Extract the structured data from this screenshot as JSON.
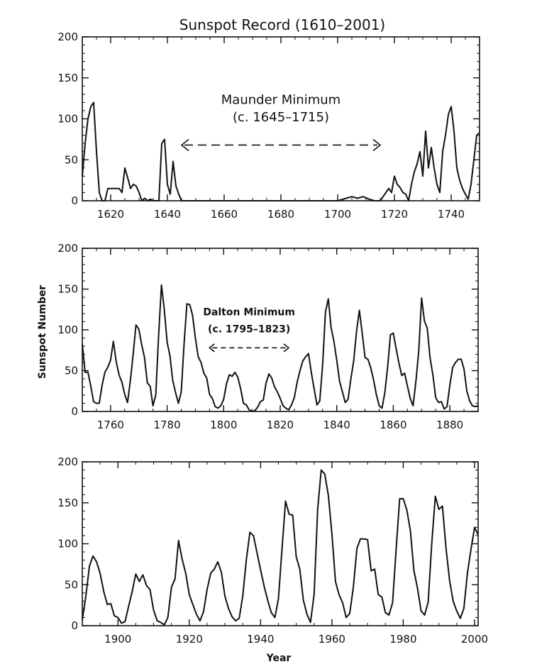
{
  "title": "Sunspot Record (1610–2001)",
  "ylabel": "Sunspot Number",
  "xlabel": "Year",
  "chart_data": [
    {
      "type": "line",
      "xlim": [
        1610,
        1750
      ],
      "ylim": [
        0,
        200
      ],
      "xticks": [
        1620,
        1640,
        1660,
        1680,
        1700,
        1720,
        1740
      ],
      "yticks": [
        0,
        50,
        100,
        150,
        200
      ],
      "annotation": {
        "line1": "Maunder Minimum",
        "line2": "(c. 1645–1715)",
        "x_from": 1645,
        "x_to": 1715,
        "y1": 118,
        "y2": 97,
        "y_arrow": 68
      },
      "series": [
        {
          "x": [
            1610,
            1611,
            1612,
            1613,
            1614,
            1615,
            1616,
            1617,
            1618,
            1619,
            1620,
            1621,
            1622,
            1623,
            1624,
            1625,
            1626,
            1627,
            1628,
            1629,
            1630,
            1631,
            1632,
            1633,
            1634,
            1635,
            1636,
            1637,
            1638,
            1639,
            1640,
            1641,
            1642,
            1643,
            1644,
            1645,
            1650,
            1660,
            1670,
            1680,
            1690,
            1700,
            1703,
            1705,
            1707,
            1709,
            1711,
            1713,
            1715,
            1716,
            1717,
            1718,
            1719,
            1720,
            1721,
            1722,
            1723,
            1724,
            1725,
            1726,
            1727,
            1728,
            1729,
            1730,
            1731,
            1732,
            1733,
            1734,
            1735,
            1736,
            1737,
            1738,
            1739,
            1740,
            1741,
            1742,
            1743,
            1744,
            1745,
            1746,
            1747,
            1748,
            1749,
            1750
          ],
          "y": [
            30,
            70,
            100,
            115,
            120,
            60,
            10,
            0,
            0,
            15,
            15,
            15,
            15,
            15,
            10,
            40,
            28,
            15,
            20,
            18,
            10,
            0,
            3,
            0,
            2,
            0,
            0,
            0,
            70,
            75,
            20,
            8,
            48,
            18,
            8,
            0,
            0,
            0,
            0,
            0,
            0,
            0,
            3,
            5,
            3,
            5,
            2,
            0,
            0,
            5,
            10,
            15,
            10,
            30,
            20,
            16,
            10,
            8,
            0,
            20,
            35,
            45,
            60,
            30,
            85,
            40,
            65,
            40,
            20,
            10,
            60,
            80,
            105,
            115,
            85,
            40,
            25,
            15,
            8,
            2,
            20,
            50,
            80,
            83
          ]
        }
      ]
    },
    {
      "type": "line",
      "xlim": [
        1750,
        1890
      ],
      "ylim": [
        0,
        200
      ],
      "xticks": [
        1760,
        1780,
        1800,
        1820,
        1840,
        1860,
        1880
      ],
      "yticks": [
        0,
        50,
        100,
        150,
        200
      ],
      "annotation": {
        "line1": "Dalton Minimum",
        "line2": "(c. 1795–1823)",
        "x_from": 1795,
        "x_to": 1823,
        "y1": 118,
        "y2": 97,
        "y_arrow": 78
      },
      "series": [
        {
          "x": [
            1750,
            1751,
            1752,
            1753,
            1754,
            1755,
            1756,
            1757,
            1758,
            1759,
            1760,
            1761,
            1762,
            1763,
            1764,
            1765,
            1766,
            1767,
            1768,
            1769,
            1770,
            1771,
            1772,
            1773,
            1774,
            1775,
            1776,
            1777,
            1778,
            1779,
            1780,
            1781,
            1782,
            1783,
            1784,
            1785,
            1786,
            1787,
            1788,
            1789,
            1790,
            1791,
            1792,
            1793,
            1794,
            1795,
            1796,
            1797,
            1798,
            1799,
            1800,
            1801,
            1802,
            1803,
            1804,
            1805,
            1806,
            1807,
            1808,
            1809,
            1810,
            1811,
            1812,
            1813,
            1814,
            1815,
            1816,
            1817,
            1818,
            1819,
            1820,
            1821,
            1822,
            1823,
            1824,
            1825,
            1826,
            1827,
            1828,
            1829,
            1830,
            1831,
            1832,
            1833,
            1834,
            1835,
            1836,
            1837,
            1838,
            1839,
            1840,
            1841,
            1842,
            1843,
            1844,
            1845,
            1846,
            1847,
            1848,
            1849,
            1850,
            1851,
            1852,
            1853,
            1854,
            1855,
            1856,
            1857,
            1858,
            1859,
            1860,
            1861,
            1862,
            1863,
            1864,
            1865,
            1866,
            1867,
            1868,
            1869,
            1870,
            1871,
            1872,
            1873,
            1874,
            1875,
            1876,
            1877,
            1878,
            1879,
            1880,
            1881,
            1882,
            1883,
            1884,
            1885,
            1886,
            1887,
            1888,
            1889,
            1890
          ],
          "y": [
            83,
            48,
            48,
            31,
            12,
            10,
            10,
            32,
            48,
            54,
            63,
            86,
            61,
            45,
            36,
            21,
            11,
            38,
            70,
            106,
            101,
            82,
            66,
            35,
            31,
            7,
            20,
            93,
            155,
            125,
            85,
            68,
            38,
            23,
            10,
            24,
            83,
            132,
            131,
            118,
            90,
            67,
            60,
            47,
            41,
            21,
            16,
            6,
            4,
            7,
            15,
            34,
            45,
            43,
            48,
            42,
            28,
            10,
            8,
            2,
            0,
            1,
            5,
            12,
            14,
            35,
            46,
            41,
            30,
            24,
            16,
            7,
            4,
            2,
            8,
            17,
            36,
            50,
            62,
            67,
            71,
            48,
            28,
            8,
            13,
            57,
            122,
            138,
            103,
            86,
            63,
            37,
            24,
            11,
            15,
            40,
            62,
            98,
            124,
            96,
            66,
            64,
            54,
            39,
            21,
            7,
            4,
            23,
            55,
            94,
            96,
            77,
            59,
            44,
            47,
            31,
            16,
            7,
            37,
            74,
            139,
            111,
            102,
            66,
            45,
            17,
            11,
            12,
            3,
            6,
            32,
            54,
            60,
            64,
            64,
            52,
            25,
            13,
            7,
            6,
            7
          ]
        }
      ]
    },
    {
      "type": "line",
      "xlim": [
        1890,
        2001
      ],
      "ylim": [
        0,
        200
      ],
      "xticks": [
        1900,
        1920,
        1940,
        1960,
        1980,
        2000
      ],
      "yticks": [
        0,
        50,
        100,
        150,
        200
      ],
      "series": [
        {
          "x": [
            1890,
            1891,
            1892,
            1893,
            1894,
            1895,
            1896,
            1897,
            1898,
            1899,
            1900,
            1901,
            1902,
            1903,
            1904,
            1905,
            1906,
            1907,
            1908,
            1909,
            1910,
            1911,
            1912,
            1913,
            1914,
            1915,
            1916,
            1917,
            1918,
            1919,
            1920,
            1921,
            1922,
            1923,
            1924,
            1925,
            1926,
            1927,
            1928,
            1929,
            1930,
            1931,
            1932,
            1933,
            1934,
            1935,
            1936,
            1937,
            1938,
            1939,
            1940,
            1941,
            1942,
            1943,
            1944,
            1945,
            1946,
            1947,
            1948,
            1949,
            1950,
            1951,
            1952,
            1953,
            1954,
            1955,
            1956,
            1957,
            1958,
            1959,
            1960,
            1961,
            1962,
            1963,
            1964,
            1965,
            1966,
            1967,
            1968,
            1969,
            1970,
            1971,
            1972,
            1973,
            1974,
            1975,
            1976,
            1977,
            1978,
            1979,
            1980,
            1981,
            1982,
            1983,
            1984,
            1985,
            1986,
            1987,
            1988,
            1989,
            1990,
            1991,
            1992,
            1993,
            1994,
            1995,
            1996,
            1997,
            1998,
            1999,
            2000,
            2001
          ],
          "y": [
            7,
            36,
            73,
            85,
            78,
            64,
            42,
            26,
            27,
            12,
            10,
            3,
            5,
            24,
            42,
            63,
            54,
            62,
            49,
            44,
            19,
            6,
            4,
            1,
            10,
            47,
            57,
            104,
            81,
            64,
            38,
            26,
            14,
            6,
            17,
            44,
            64,
            69,
            78,
            65,
            36,
            21,
            11,
            6,
            9,
            36,
            80,
            114,
            110,
            89,
            68,
            48,
            31,
            16,
            10,
            33,
            93,
            152,
            136,
            135,
            84,
            69,
            31,
            14,
            4,
            38,
            142,
            190,
            185,
            159,
            112,
            54,
            38,
            28,
            10,
            15,
            47,
            94,
            106,
            106,
            105,
            67,
            69,
            38,
            35,
            16,
            13,
            28,
            93,
            155,
            155,
            141,
            116,
            67,
            46,
            18,
            13,
            29,
            100,
            158,
            142,
            146,
            94,
            55,
            30,
            18,
            9,
            21,
            64,
            93,
            120,
            111
          ]
        }
      ]
    }
  ]
}
